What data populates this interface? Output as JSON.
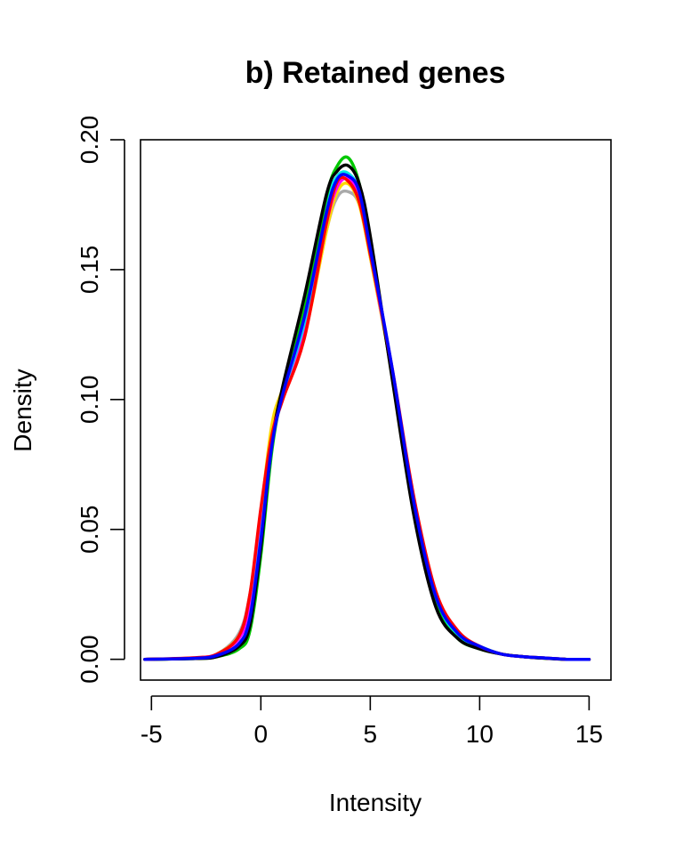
{
  "chart_data": {
    "type": "line",
    "title": "b) Retained genes",
    "xlabel": "Intensity",
    "ylabel": "Density",
    "xlim": [
      -5.5,
      16
    ],
    "ylim": [
      -0.008,
      0.2
    ],
    "xticks": [
      -5,
      0,
      5,
      10,
      15
    ],
    "xtick_labels": [
      "-5",
      "0",
      "5",
      "10",
      "15"
    ],
    "yticks": [
      0.0,
      0.05,
      0.1,
      0.15,
      0.2
    ],
    "ytick_labels": [
      "0.00",
      "0.05",
      "0.10",
      "0.15",
      "0.20"
    ],
    "grid": false,
    "legend": "none",
    "series": [
      {
        "color": "#aaaaaa",
        "x": [
          -5.3,
          -3,
          -2,
          -1,
          -0.5,
          0,
          0.5,
          1,
          2,
          3,
          3.5,
          4,
          4.5,
          5,
          6,
          7,
          8,
          9,
          10,
          11,
          12,
          13,
          14,
          15
        ],
        "y": [
          0,
          0.0005,
          0.002,
          0.01,
          0.025,
          0.055,
          0.085,
          0.1,
          0.125,
          0.165,
          0.178,
          0.18,
          0.175,
          0.155,
          0.11,
          0.06,
          0.025,
          0.01,
          0.005,
          0.002,
          0.001,
          0.0005,
          0,
          0
        ]
      },
      {
        "color": "#ffd700",
        "x": [
          -5.3,
          -3,
          -2,
          -1,
          -0.5,
          0,
          0.5,
          1,
          2,
          3,
          3.5,
          4,
          4.5,
          5,
          6,
          7,
          8,
          9,
          10,
          11,
          12,
          13,
          14,
          15
        ],
        "y": [
          0,
          0.0005,
          0.002,
          0.009,
          0.023,
          0.056,
          0.09,
          0.104,
          0.125,
          0.165,
          0.18,
          0.183,
          0.175,
          0.155,
          0.11,
          0.06,
          0.024,
          0.01,
          0.005,
          0.002,
          0.001,
          0.0005,
          0,
          0
        ]
      },
      {
        "color": "#ff00ff",
        "x": [
          -5.3,
          -3,
          -2,
          -1,
          -0.5,
          0,
          0.5,
          1,
          2,
          3,
          3.5,
          4,
          4.5,
          5,
          6,
          7,
          8,
          9,
          10,
          11,
          12,
          13,
          14,
          15
        ],
        "y": [
          0,
          0.0005,
          0.002,
          0.008,
          0.02,
          0.052,
          0.085,
          0.102,
          0.128,
          0.168,
          0.182,
          0.185,
          0.178,
          0.157,
          0.11,
          0.06,
          0.024,
          0.01,
          0.005,
          0.002,
          0.001,
          0.0005,
          0,
          0
        ]
      },
      {
        "color": "#00e5e5",
        "x": [
          -5.3,
          -3,
          -2,
          -1,
          -0.5,
          0,
          0.5,
          1,
          2,
          3,
          3.5,
          4,
          4.5,
          5,
          6,
          7,
          8,
          9,
          10,
          11,
          12,
          13,
          14,
          15
        ],
        "y": [
          0,
          0.0004,
          0.0015,
          0.006,
          0.016,
          0.047,
          0.082,
          0.102,
          0.13,
          0.175,
          0.186,
          0.187,
          0.18,
          0.158,
          0.111,
          0.06,
          0.023,
          0.009,
          0.005,
          0.002,
          0.001,
          0.0005,
          0,
          0
        ]
      },
      {
        "color": "#00c800",
        "x": [
          -5.3,
          -3,
          -2,
          -1,
          -0.5,
          0,
          0.5,
          1,
          2,
          3,
          3.5,
          4,
          4.5,
          5,
          6,
          7,
          8,
          9,
          10,
          11,
          12,
          13,
          14,
          15
        ],
        "y": [
          0,
          0.0003,
          0.001,
          0.004,
          0.011,
          0.04,
          0.08,
          0.103,
          0.135,
          0.178,
          0.19,
          0.193,
          0.183,
          0.16,
          0.109,
          0.058,
          0.021,
          0.008,
          0.004,
          0.002,
          0.001,
          0.0004,
          0,
          0
        ]
      },
      {
        "color": "#000000",
        "x": [
          -5.3,
          -3,
          -2,
          -1,
          -0.5,
          0,
          0.5,
          1,
          2,
          3,
          3.5,
          4,
          4.5,
          5,
          6,
          7,
          8,
          9,
          10,
          11,
          12,
          13,
          14,
          15
        ],
        "y": [
          0,
          0.0003,
          0.001,
          0.005,
          0.013,
          0.043,
          0.083,
          0.105,
          0.14,
          0.179,
          0.188,
          0.19,
          0.183,
          0.163,
          0.108,
          0.055,
          0.02,
          0.008,
          0.004,
          0.002,
          0.001,
          0.0004,
          0,
          0
        ]
      },
      {
        "color": "#ff0000",
        "x": [
          -5.3,
          -3,
          -2,
          -1,
          -0.5,
          0,
          0.5,
          1,
          2,
          3,
          3.5,
          4,
          4.5,
          5,
          6,
          7,
          8,
          9,
          10,
          11,
          12,
          13,
          14,
          15
        ],
        "y": [
          0,
          0.0006,
          0.002,
          0.009,
          0.025,
          0.058,
          0.086,
          0.1,
          0.124,
          0.168,
          0.184,
          0.184,
          0.176,
          0.156,
          0.112,
          0.062,
          0.026,
          0.011,
          0.005,
          0.002,
          0.001,
          0.0005,
          0,
          0
        ]
      },
      {
        "color": "#0000ff",
        "x": [
          -5.3,
          -3,
          -2,
          -1,
          -0.5,
          0,
          0.5,
          1,
          2,
          3,
          3.5,
          4,
          4.5,
          5,
          6,
          7,
          8,
          9,
          10,
          11,
          12,
          13,
          14,
          15
        ],
        "y": [
          0,
          0.0004,
          0.0015,
          0.006,
          0.016,
          0.046,
          0.082,
          0.102,
          0.132,
          0.172,
          0.185,
          0.186,
          0.18,
          0.158,
          0.112,
          0.06,
          0.024,
          0.01,
          0.005,
          0.002,
          0.001,
          0.0005,
          0,
          0
        ]
      }
    ]
  }
}
